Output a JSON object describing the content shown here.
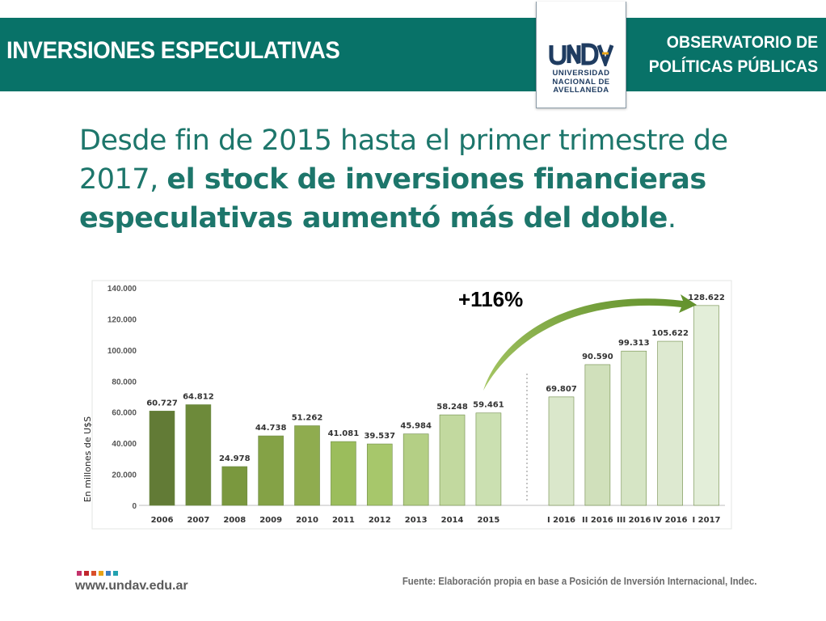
{
  "header": {
    "title": "INVERSIONES ESPECULATIVAS",
    "org_line1": "OBSERVATORIO DE",
    "org_line2": "POLÍTICAS PÚBLICAS"
  },
  "logo": {
    "mark": "UNDAV",
    "line1": "UNIVERSIDAD",
    "line2": "NACIONAL DE",
    "line3": "AVELLANEDA",
    "color": "#1f3c61"
  },
  "headline": {
    "part1": "Desde fin de 2015 hasta el primer trimestre de 2017, ",
    "bold": "el stock de inversiones financieras especulativas aumentó más del doble",
    "end": "."
  },
  "chart_data": {
    "type": "bar",
    "ylabel": "En millones de U$S",
    "ylim": [
      0,
      140000
    ],
    "yticks": [
      "0",
      "20.000",
      "40.000",
      "60.000",
      "80.000",
      "100.000",
      "120.000",
      "140.000"
    ],
    "ytick_values": [
      0,
      20000,
      40000,
      60000,
      80000,
      100000,
      120000,
      140000
    ],
    "categories": [
      "2006",
      "2007",
      "2008",
      "2009",
      "2010",
      "2011",
      "2012",
      "2013",
      "2014",
      "2015",
      "I 2016",
      "II 2016",
      "III 2016",
      "IV 2016",
      "I 2017"
    ],
    "values": [
      60727,
      64812,
      24978,
      44738,
      51262,
      41081,
      39537,
      45984,
      58248,
      59461,
      69807,
      90590,
      99313,
      105622,
      128622
    ],
    "value_labels": [
      "60.727",
      "64.812",
      "24.978",
      "44.738",
      "51.262",
      "41.081",
      "39.537",
      "45.984",
      "58.248",
      "59.461",
      "69.807",
      "90.590",
      "99.313",
      "105.622",
      "128.622"
    ],
    "colors": [
      "#627b36",
      "#6d8a3a",
      "#7a983e",
      "#84a246",
      "#8fac4f",
      "#9bbd5c",
      "#a7c76b",
      "#b4cf85",
      "#c2d99f",
      "#cbe0b1",
      "#dae7cb",
      "#d0e0bb",
      "#d6e5c5",
      "#dde9d0",
      "#e3eed9"
    ],
    "annotation": "+116%",
    "annotation_color": "#000000",
    "arrow_color": "#7aa63a",
    "grid": false
  },
  "footer": {
    "url": "www.undav.edu.ar",
    "source": "Fuente: Elaboración propia en base a Posición de Inversión Internacional, Indec.",
    "dot_colors": [
      "#c3326b",
      "#c1272d",
      "#d94f2a",
      "#e8a317",
      "#3a7ec2",
      "#23a2b0"
    ]
  }
}
